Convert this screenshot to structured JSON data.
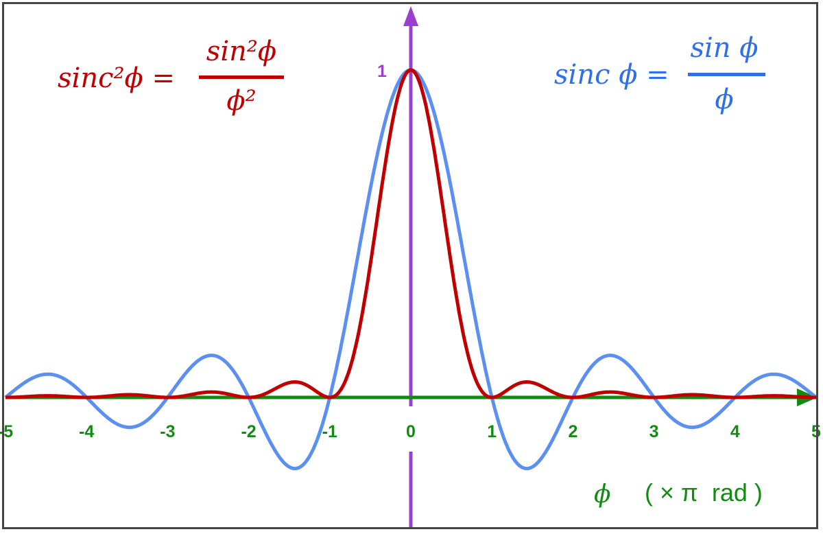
{
  "chart_data": {
    "type": "line",
    "title": "",
    "xlabel": {
      "symbol": "ϕ",
      "unit": "( × π  rad )"
    },
    "ylabel": "",
    "xlim": [
      -5,
      5
    ],
    "ylim": [
      -0.22,
      1
    ],
    "x_ticks": [
      "-5",
      "-4",
      "-3",
      "-2",
      "-1",
      "0",
      "1",
      "2",
      "3",
      "4",
      "5"
    ],
    "y_ticks": [
      "1"
    ],
    "grid": false,
    "series": [
      {
        "name": "sinc ϕ = sin ϕ / ϕ",
        "label": {
          "lhs": "sinc ϕ =",
          "num": "sin ϕ",
          "den": "ϕ"
        },
        "function": "sinc",
        "color": "#5b8ff0",
        "x": [
          -5,
          -4.5,
          -4,
          -3.5,
          -3,
          -2.5,
          -2,
          -1.5,
          -1,
          -0.5,
          0,
          0.5,
          1,
          1.5,
          2,
          2.5,
          3,
          3.5,
          4,
          4.5,
          5
        ],
        "y": [
          0,
          0.071,
          0,
          -0.091,
          0,
          0.127,
          0,
          -0.212,
          0,
          0.637,
          1,
          0.637,
          0,
          -0.212,
          0,
          0.127,
          0,
          -0.091,
          0,
          0.071,
          0
        ]
      },
      {
        "name": "sinc²ϕ = sin²ϕ / ϕ²",
        "label": {
          "lhs": "sinc²ϕ =",
          "num": "sin²ϕ",
          "den": "ϕ²"
        },
        "function": "sinc2",
        "color": "#c00000",
        "x": [
          -5,
          -4.5,
          -4,
          -3.5,
          -3,
          -2.5,
          -2,
          -1.5,
          -1,
          -0.5,
          0,
          0.5,
          1,
          1.5,
          2,
          2.5,
          3,
          3.5,
          4,
          4.5,
          5
        ],
        "y": [
          0,
          0.005,
          0,
          0.008,
          0,
          0.016,
          0,
          0.045,
          0,
          0.405,
          1,
          0.405,
          0,
          0.045,
          0,
          0.016,
          0,
          0.008,
          0,
          0.005,
          0
        ]
      }
    ],
    "colors": {
      "x_axis": "#138a13",
      "y_axis": "#9b3fcf",
      "frame": "#444444"
    }
  }
}
